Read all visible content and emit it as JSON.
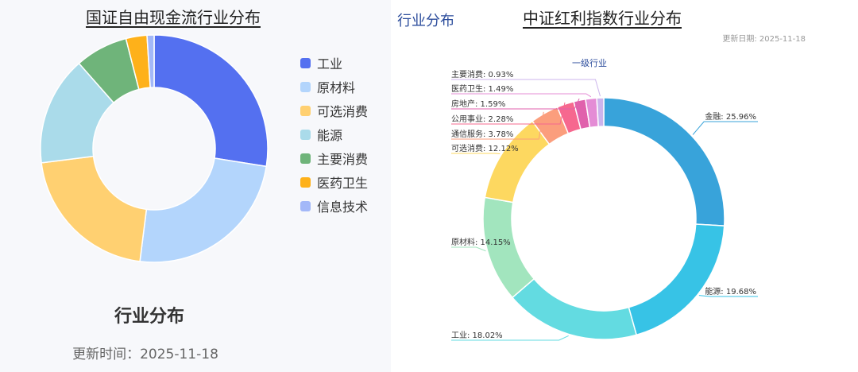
{
  "left_panel": {
    "title": "国证自由现金流行业分布",
    "big_label": "行业分布",
    "date_text": "更新时间：2025-11-18"
  },
  "right_panel": {
    "tag": "行业分布",
    "title": "中证红利指数行业分布",
    "update_text": "更新日期: 2025-11-18",
    "subtitle": "一级行业"
  },
  "chart_data": [
    {
      "type": "pie",
      "title": "国证自由现金流行业分布",
      "donut": true,
      "legend_position": "right",
      "categories": [
        "工业",
        "原材料",
        "可选消费",
        "能源",
        "主要消费",
        "医药卫生",
        "信息技术"
      ],
      "values": [
        27.5,
        24.5,
        21.0,
        15.5,
        7.5,
        3.0,
        1.0
      ],
      "colors": [
        "#5470f0",
        "#b3d5fc",
        "#ffd071",
        "#aadbea",
        "#6fb47a",
        "#feb11a",
        "#a3b8f8"
      ]
    },
    {
      "type": "pie",
      "title": "中证红利指数行业分布",
      "subtitle": "一级行业",
      "donut": true,
      "categories": [
        "金融",
        "能源",
        "工业",
        "原材料",
        "可选消费",
        "通信服务",
        "公用事业",
        "房地产",
        "医药卫生",
        "主要消费"
      ],
      "values": [
        25.96,
        19.68,
        18.02,
        14.15,
        12.12,
        3.78,
        2.28,
        1.59,
        1.49,
        0.93
      ],
      "labels": [
        "金融: 25.96%",
        "能源: 19.68%",
        "工业: 18.02%",
        "原材料: 14.15%",
        "可选消费: 12.12%",
        "通信服务: 3.78%",
        "公用事业: 2.28%",
        "房地产: 1.59%",
        "医药卫生: 1.49%",
        "主要消费: 0.93%"
      ],
      "colors": [
        "#38a3da",
        "#37c3e6",
        "#63dbe1",
        "#a2e5be",
        "#fdd860",
        "#fb9e7d",
        "#f6688f",
        "#e061ac",
        "#e48cd5",
        "#ccb4ec"
      ]
    }
  ]
}
